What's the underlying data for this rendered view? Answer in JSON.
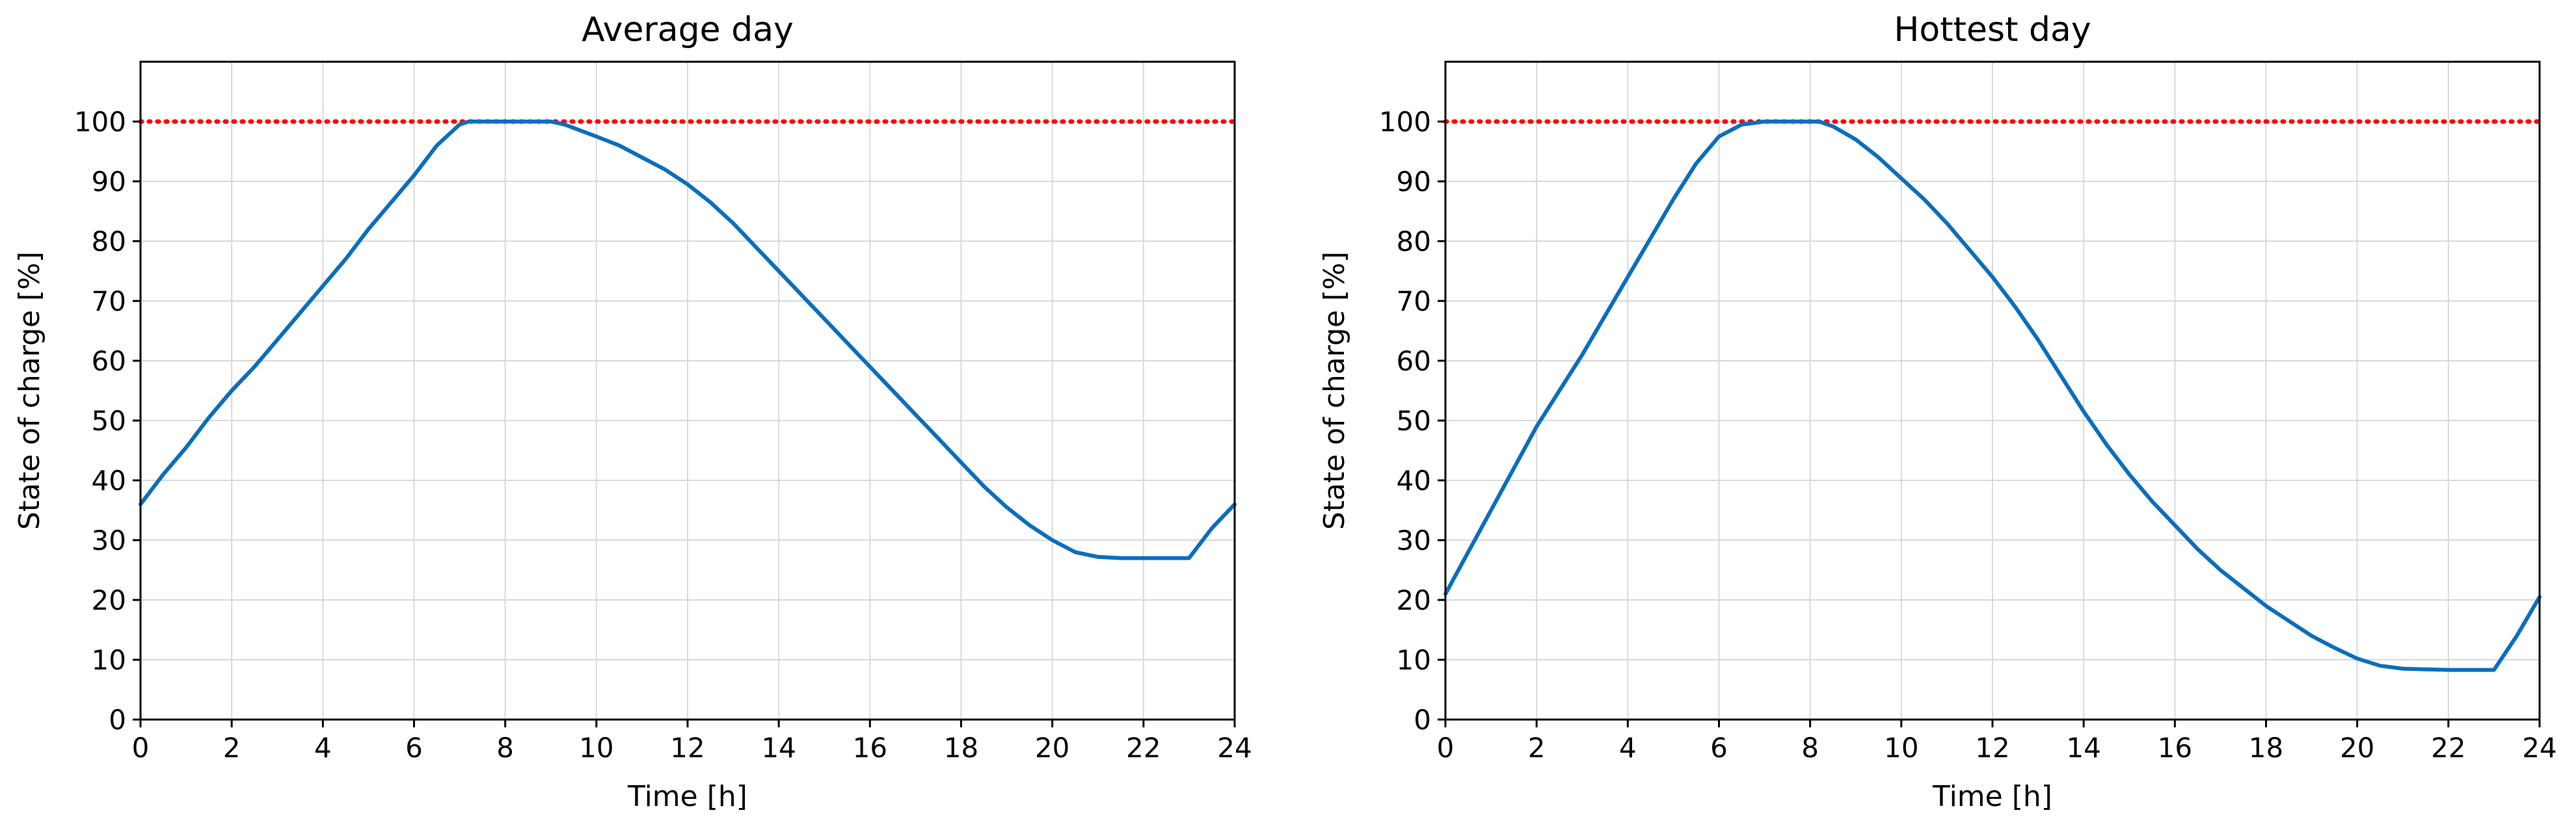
{
  "chart_data": [
    {
      "type": "line",
      "title": "Average day",
      "xlabel": "Time [h]",
      "ylabel": "State of charge [%]",
      "xlim": [
        0,
        24
      ],
      "ylim": [
        0,
        110
      ],
      "xticks": [
        "0",
        "2",
        "4",
        "6",
        "8",
        "10",
        "12",
        "14",
        "16",
        "18",
        "20",
        "22",
        "24"
      ],
      "yticks": [
        "0",
        "10",
        "20",
        "30",
        "40",
        "50",
        "60",
        "70",
        "80",
        "90",
        "100"
      ],
      "grid": true,
      "reference_line": {
        "y": 100,
        "color": "#ff0000",
        "style": "dotted"
      },
      "series": [
        {
          "color": "#0a6ebd",
          "x": [
            0,
            0.5,
            1,
            1.5,
            2,
            2.5,
            3,
            3.5,
            4,
            4.5,
            5,
            5.5,
            6,
            6.5,
            7,
            7.2,
            8,
            9,
            9.3,
            10,
            10.5,
            11,
            11.5,
            12,
            12.5,
            13,
            13.5,
            14,
            14.5,
            15,
            15.5,
            16,
            16.5,
            17,
            17.5,
            18,
            18.5,
            19,
            19.5,
            20,
            20.5,
            21,
            21.5,
            22,
            22.5,
            23,
            23.5,
            24
          ],
          "y": [
            36,
            41,
            45.5,
            50.5,
            55,
            59,
            63.5,
            68,
            72.5,
            77,
            82,
            86.5,
            91,
            96,
            99.5,
            100,
            100,
            100,
            99.5,
            97.5,
            96,
            94,
            92,
            89.5,
            86.5,
            83,
            79,
            75,
            71,
            67,
            63,
            59,
            55,
            51,
            47,
            43,
            39,
            35.5,
            32.5,
            30,
            28,
            27.2,
            27,
            27,
            27,
            27,
            32,
            36
          ]
        }
      ]
    },
    {
      "type": "line",
      "title": "Hottest day",
      "xlabel": "Time [h]",
      "ylabel": "State of charge [%]",
      "xlim": [
        0,
        24
      ],
      "ylim": [
        0,
        110
      ],
      "xticks": [
        "0",
        "2",
        "4",
        "6",
        "8",
        "10",
        "12",
        "14",
        "16",
        "18",
        "20",
        "22",
        "24"
      ],
      "yticks": [
        "0",
        "10",
        "20",
        "30",
        "40",
        "50",
        "60",
        "70",
        "80",
        "90",
        "100"
      ],
      "grid": true,
      "reference_line": {
        "y": 100,
        "color": "#ff0000",
        "style": "dotted"
      },
      "series": [
        {
          "color": "#0a6ebd",
          "x": [
            0,
            0.5,
            1,
            1.5,
            2,
            2.5,
            3,
            3.5,
            4,
            4.5,
            5,
            5.5,
            6,
            6.5,
            7,
            8,
            8.2,
            8.5,
            9,
            9.5,
            10,
            10.5,
            11,
            11.5,
            12,
            12.5,
            13,
            13.5,
            14,
            14.5,
            15,
            15.5,
            16,
            16.5,
            17,
            17.5,
            18,
            18.5,
            19,
            19.5,
            20,
            20.5,
            21,
            21.5,
            22,
            22.5,
            23,
            23.5,
            24
          ],
          "y": [
            21,
            28,
            35,
            42,
            49,
            55,
            61,
            67.5,
            74,
            80.5,
            87,
            93,
            97.5,
            99.5,
            100,
            100,
            100,
            99.2,
            97,
            94,
            90.5,
            87,
            83,
            78.5,
            74,
            69,
            63.5,
            57.5,
            51.5,
            46,
            41,
            36.5,
            32.5,
            28.5,
            25,
            22,
            19,
            16.5,
            14,
            12,
            10.2,
            9,
            8.5,
            8.4,
            8.3,
            8.3,
            8.3,
            14,
            20.5
          ]
        }
      ]
    }
  ]
}
